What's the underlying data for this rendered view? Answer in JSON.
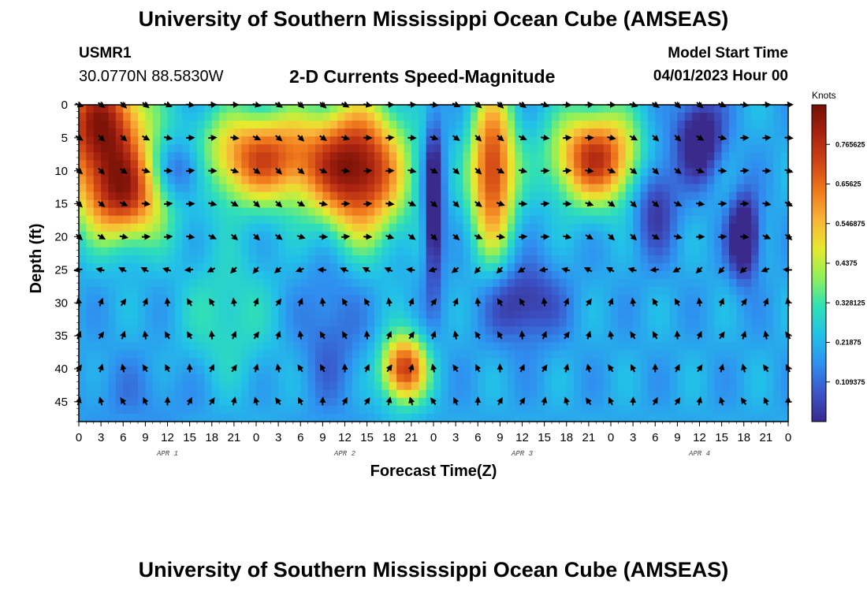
{
  "header": {
    "title": "University of Southern Mississippi Ocean Cube (AMSEAS)",
    "station": "USMR1",
    "coords": "30.0770N  88.5830W",
    "subtitle": "2-D Currents Speed-Magnitude",
    "start_label": "Model Start Time",
    "start_value": "04/01/2023 Hour 00"
  },
  "footer": {
    "title": "University of Southern Mississippi Ocean Cube (AMSEAS)"
  },
  "chart_data": {
    "type": "heatmap",
    "title": "2-D Currents Speed-Magnitude",
    "xlabel": "Forecast Time(Z)",
    "ylabel": "Depth (ft)",
    "x_hours_range": [
      0,
      96
    ],
    "y_range": [
      0,
      48
    ],
    "x_tick_labels": [
      "0",
      "3",
      "6",
      "9",
      "12",
      "15",
      "18",
      "21",
      "0",
      "3",
      "6",
      "9",
      "12",
      "15",
      "18",
      "21",
      "0",
      "3",
      "6",
      "9",
      "12",
      "15",
      "18",
      "21",
      "0",
      "3",
      "6",
      "9",
      "12",
      "15",
      "18",
      "21",
      "0"
    ],
    "y_ticks": [
      0,
      5,
      10,
      15,
      20,
      25,
      30,
      35,
      40,
      45
    ],
    "day_labels": [
      {
        "label": "APR 1",
        "hour": 12
      },
      {
        "label": "APR 2",
        "hour": 36
      },
      {
        "label": "APR 3",
        "hour": 60
      },
      {
        "label": "APR 4",
        "hour": 84
      }
    ],
    "colorbar": {
      "label": "Knots",
      "min": 0.0,
      "max": 0.875,
      "tick_labels": [
        "0.109375",
        "0.21875",
        "0.328125",
        "0.4375",
        "0.546875",
        "0.65625",
        "0.765625"
      ],
      "tick_values": [
        0.109375,
        0.21875,
        0.328125,
        0.4375,
        0.546875,
        0.65625,
        0.765625
      ],
      "colors": [
        "#3a2a8c",
        "#3b54c8",
        "#2f8ff0",
        "#22c1e8",
        "#2fe0b6",
        "#8ff05a",
        "#e6e92e",
        "#f9b43a",
        "#f07a1c",
        "#cf4416",
        "#a82210",
        "#741006"
      ]
    },
    "arrow_depths": [
      0,
      5,
      10,
      15,
      20,
      25,
      30,
      35,
      40,
      45
    ],
    "arrow_hours_step": 3,
    "speed_features": [
      {
        "t": 3,
        "d": 3,
        "sx": 6,
        "sy": 9,
        "v": 0.62
      },
      {
        "t": 6,
        "d": 14,
        "sx": 6,
        "sy": 7,
        "v": 0.5
      },
      {
        "t": 14,
        "d": 10,
        "sx": 4,
        "sy": 5,
        "v": -0.25
      },
      {
        "t": 25,
        "d": 8,
        "sx": 9,
        "sy": 7,
        "v": 0.5
      },
      {
        "t": 38,
        "d": 10,
        "sx": 6,
        "sy": 10,
        "v": 0.62
      },
      {
        "t": 48,
        "d": 15,
        "sx": 1.2,
        "sy": 12,
        "v": -0.35
      },
      {
        "t": 56,
        "d": 10,
        "sx": 3,
        "sy": 12,
        "v": 0.55
      },
      {
        "t": 60,
        "d": 30,
        "sx": 5,
        "sy": 6,
        "v": -0.2
      },
      {
        "t": 44,
        "d": 40,
        "sx": 3,
        "sy": 5,
        "v": 0.55
      },
      {
        "t": 70,
        "d": 8,
        "sx": 6,
        "sy": 7,
        "v": 0.55
      },
      {
        "t": 78,
        "d": 14,
        "sx": 3,
        "sy": 8,
        "v": -0.2
      },
      {
        "t": 84,
        "d": 5,
        "sx": 3,
        "sy": 6,
        "v": -0.3
      },
      {
        "t": 90,
        "d": 20,
        "sx": 2,
        "sy": 6,
        "v": -0.35
      },
      {
        "t": 34,
        "d": 34,
        "sx": 4,
        "sy": 12,
        "v": -0.1
      },
      {
        "t": 20,
        "d": 32,
        "sx": 6,
        "sy": 10,
        "v": 0.12
      },
      {
        "t": 8,
        "d": 44,
        "sx": 9,
        "sy": 6,
        "v": -0.05
      }
    ]
  }
}
